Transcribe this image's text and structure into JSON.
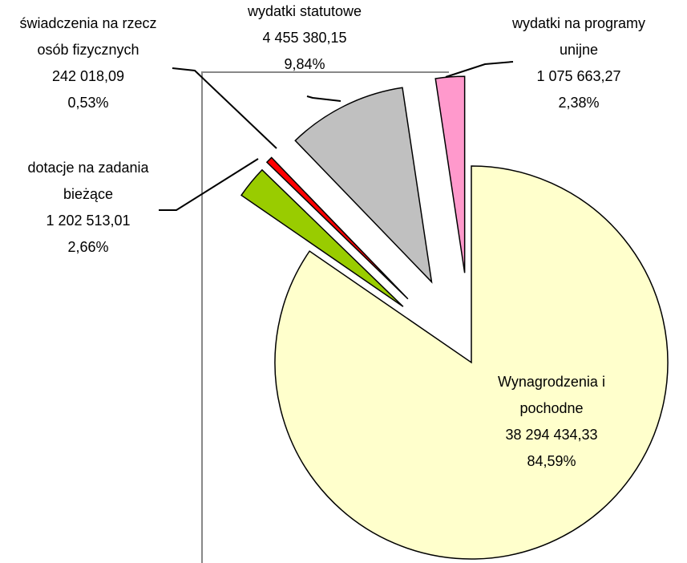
{
  "chart_data": {
    "type": "pie",
    "categories": [
      "Wynagrodzenia i\npochodne",
      "dotacje na zadania\nbieżące",
      "świadczenia na rzecz\nosób fizycznych",
      "wydatki statutowe",
      "wydatki na programy\nunijne"
    ],
    "values": [
      38294434.33,
      1202513.01,
      242018.09,
      4455380.15,
      1075663.27
    ],
    "value_labels": [
      "38 294 434,33",
      "1 202 513,01",
      "242 018,09",
      "4 455 380,15",
      "1 075 663,27"
    ],
    "percents": [
      84.59,
      2.66,
      0.53,
      9.84,
      2.38
    ],
    "percent_labels": [
      "84,59%",
      "2,66%",
      "0,53%",
      "9,84%",
      "2,38%"
    ],
    "colors": [
      "#ffffcc",
      "#99cc00",
      "#ff0000",
      "#c0c0c0",
      "#ff99cc"
    ]
  }
}
